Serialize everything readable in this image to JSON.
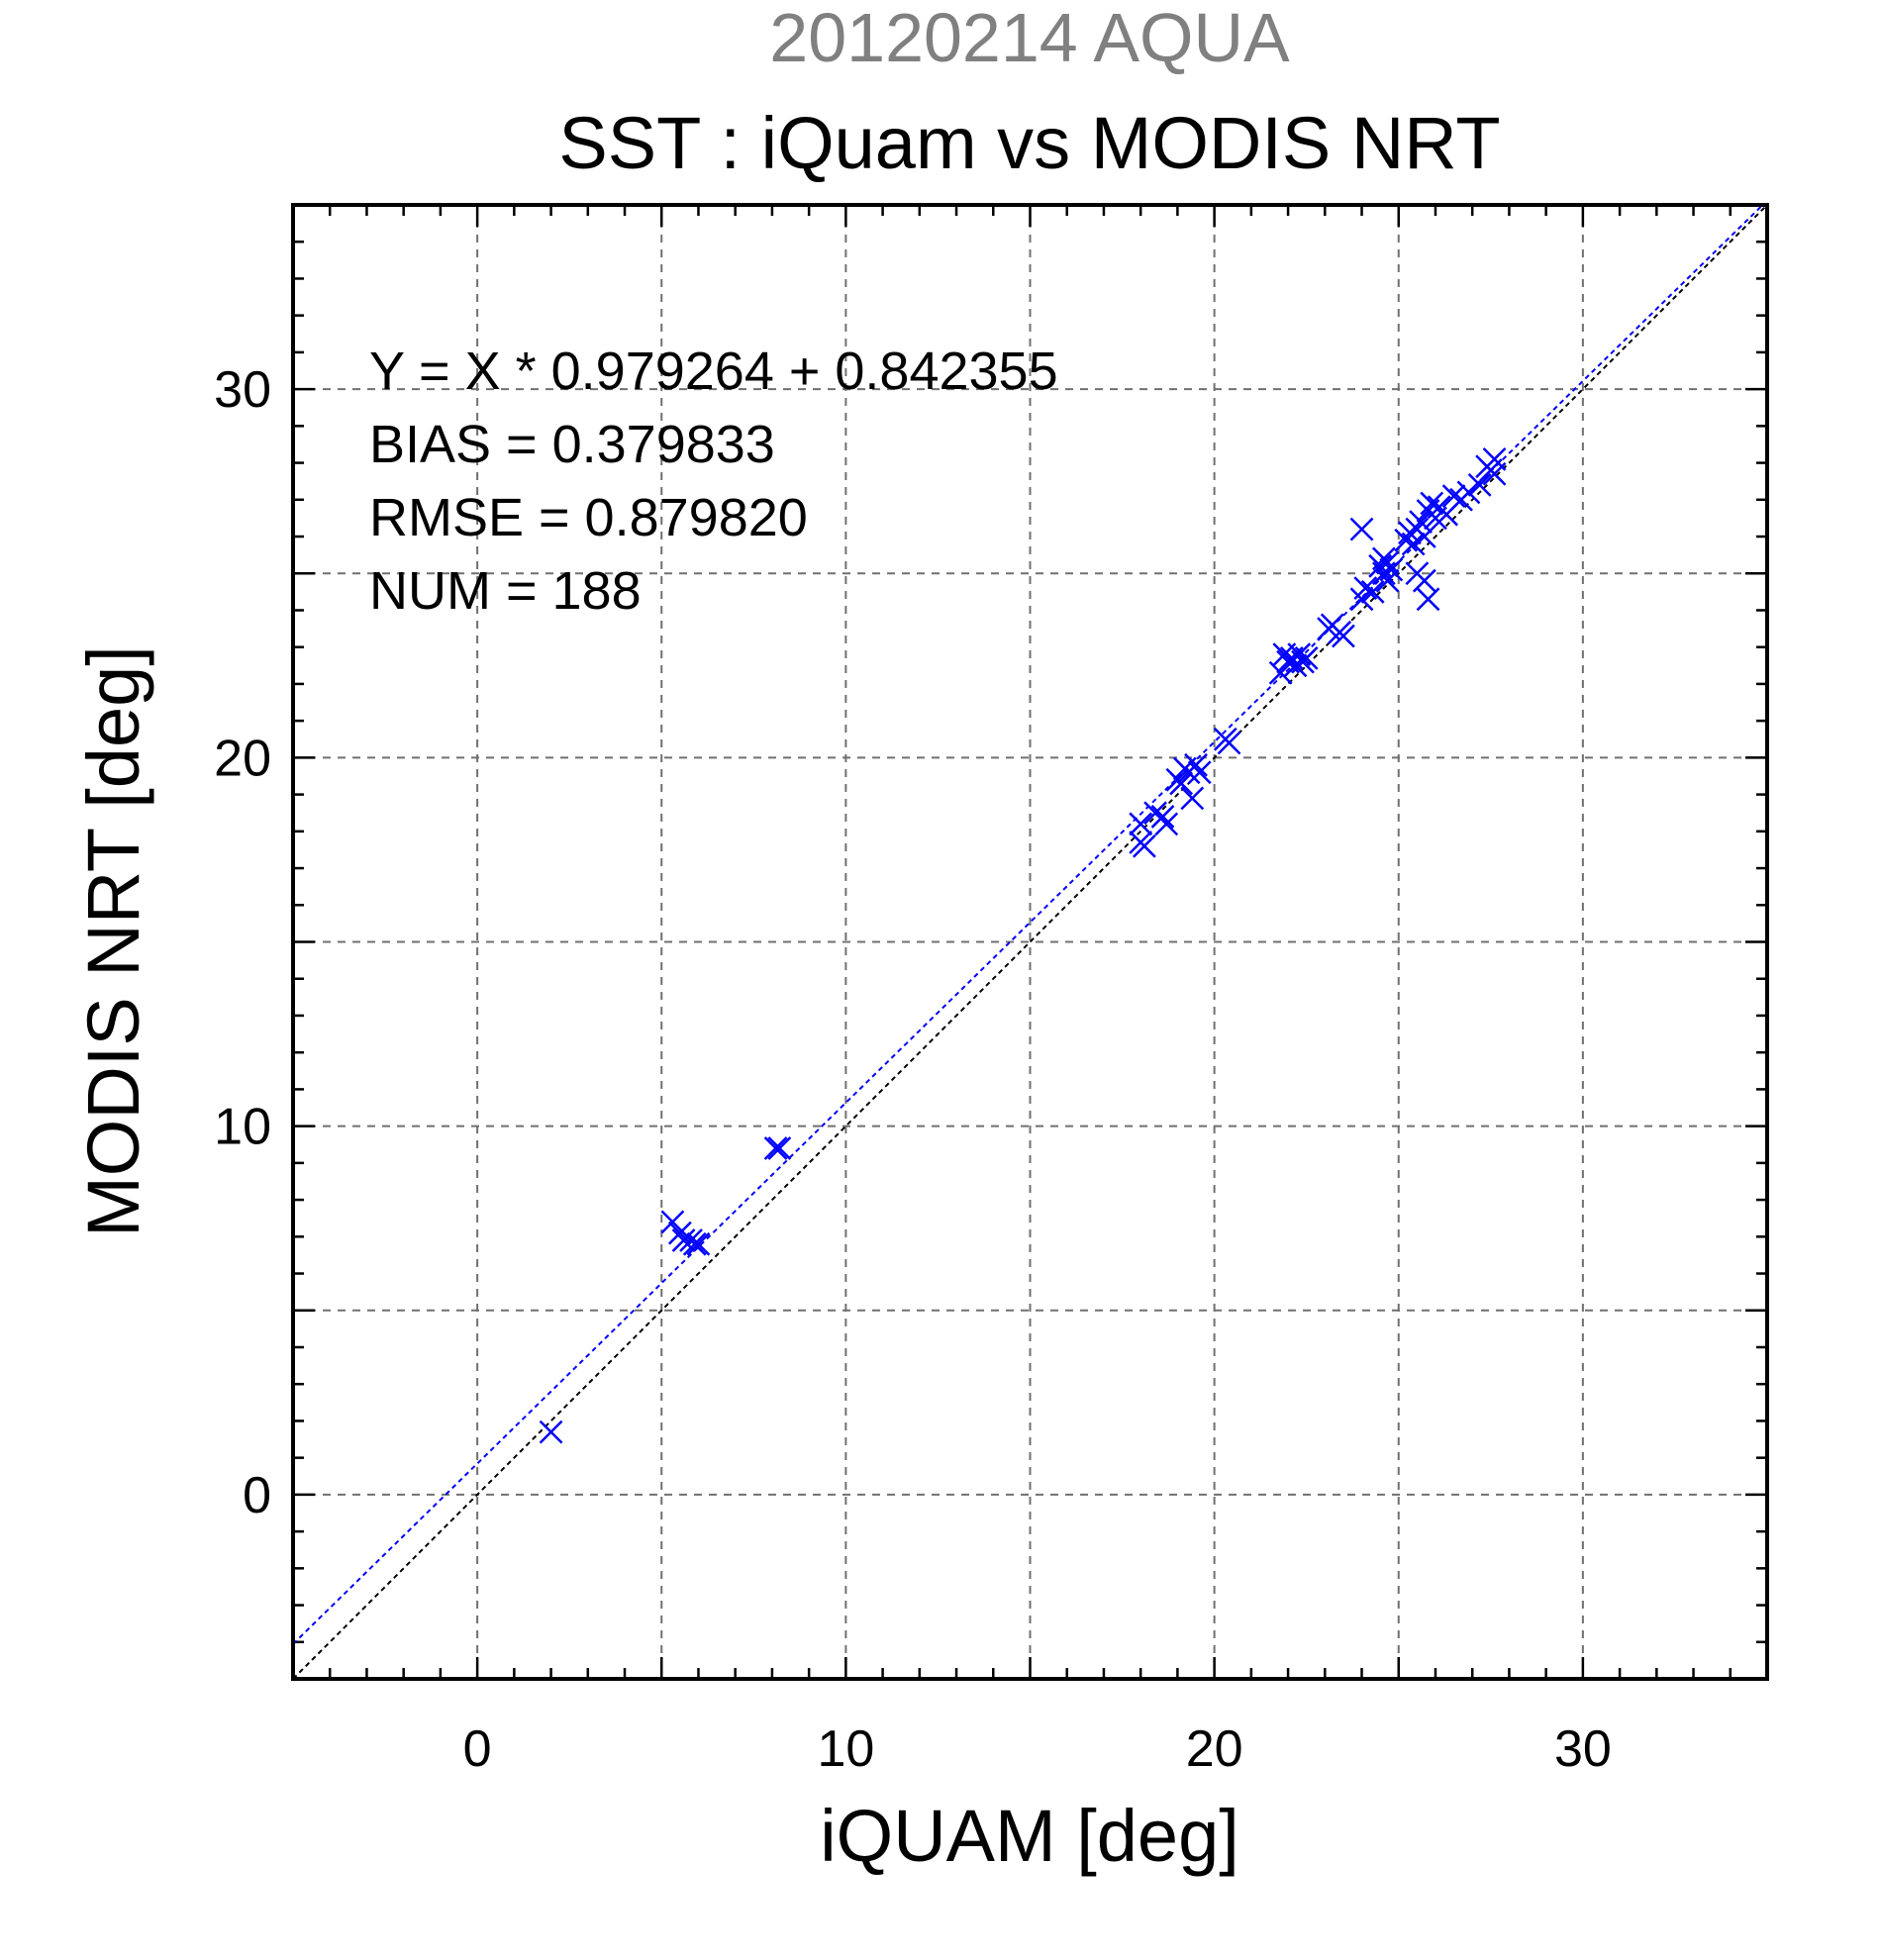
{
  "chart_data": {
    "type": "scatter",
    "title_line1": "20120214 AQUA",
    "title_line2": "SST : iQuam vs MODIS NRT",
    "xlabel": "iQUAM [deg]",
    "ylabel": "MODIS NRT [deg]",
    "xlim": [
      -5,
      35
    ],
    "ylim": [
      -5,
      35
    ],
    "x_major_ticks": [
      0,
      10,
      20,
      30
    ],
    "y_major_ticks": [
      0,
      10,
      20,
      30
    ],
    "grid": true,
    "grid_step": 5,
    "minor_tick_step": 1,
    "stats": {
      "fit": "Y = X * 0.979264 + 0.842355",
      "bias": "BIAS = 0.379833",
      "rmse": "RMSE = 0.879820",
      "num": "NUM = 188"
    },
    "fit_line": {
      "slope": 0.979264,
      "intercept": 0.842355,
      "color": "#0000ff"
    },
    "one_to_one_line": {
      "color": "#000000"
    },
    "marker_color": "#0000ff",
    "marker_symbol": "x",
    "points": [
      [
        2.0,
        1.7
      ],
      [
        5.3,
        7.4
      ],
      [
        5.5,
        7.1
      ],
      [
        5.6,
        6.9
      ],
      [
        5.8,
        6.9
      ],
      [
        5.9,
        6.8
      ],
      [
        6.0,
        6.8
      ],
      [
        8.1,
        9.4
      ],
      [
        8.2,
        9.4
      ],
      [
        18.0,
        18.2
      ],
      [
        18.0,
        17.7
      ],
      [
        18.1,
        17.6
      ],
      [
        18.4,
        18.5
      ],
      [
        18.6,
        18.4
      ],
      [
        18.7,
        18.2
      ],
      [
        19.0,
        19.4
      ],
      [
        19.1,
        19.3
      ],
      [
        19.2,
        19.7
      ],
      [
        19.3,
        19.6
      ],
      [
        19.4,
        18.9
      ],
      [
        19.5,
        19.8
      ],
      [
        19.6,
        19.6
      ],
      [
        20.3,
        20.5
      ],
      [
        20.4,
        20.4
      ],
      [
        21.8,
        22.3
      ],
      [
        21.9,
        22.8
      ],
      [
        22.0,
        22.6
      ],
      [
        22.1,
        22.7
      ],
      [
        22.2,
        22.5
      ],
      [
        22.3,
        22.8
      ],
      [
        22.4,
        22.6
      ],
      [
        22.5,
        22.7
      ],
      [
        23.1,
        23.5
      ],
      [
        23.2,
        23.6
      ],
      [
        23.4,
        23.4
      ],
      [
        23.5,
        23.3
      ],
      [
        24.0,
        24.3
      ],
      [
        24.1,
        24.6
      ],
      [
        24.0,
        26.2
      ],
      [
        24.3,
        24.5
      ],
      [
        24.5,
        25.2
      ],
      [
        24.6,
        25.4
      ],
      [
        24.6,
        25.0
      ],
      [
        24.7,
        24.8
      ],
      [
        24.8,
        25.1
      ],
      [
        24.7,
        25.3
      ],
      [
        25.2,
        25.9
      ],
      [
        25.3,
        26.1
      ],
      [
        25.4,
        25.8
      ],
      [
        25.5,
        26.2
      ],
      [
        25.5,
        25.0
      ],
      [
        25.6,
        26.4
      ],
      [
        25.7,
        26.0
      ],
      [
        25.7,
        24.8
      ],
      [
        25.8,
        24.3
      ],
      [
        25.8,
        26.7
      ],
      [
        25.9,
        26.9
      ],
      [
        26.0,
        26.5
      ],
      [
        26.1,
        26.8
      ],
      [
        26.3,
        26.6
      ],
      [
        26.5,
        27.1
      ],
      [
        26.7,
        27.0
      ],
      [
        26.9,
        27.2
      ],
      [
        27.2,
        27.4
      ],
      [
        27.4,
        27.9
      ],
      [
        27.5,
        27.8
      ],
      [
        27.6,
        27.7
      ],
      [
        27.6,
        28.1
      ]
    ]
  }
}
